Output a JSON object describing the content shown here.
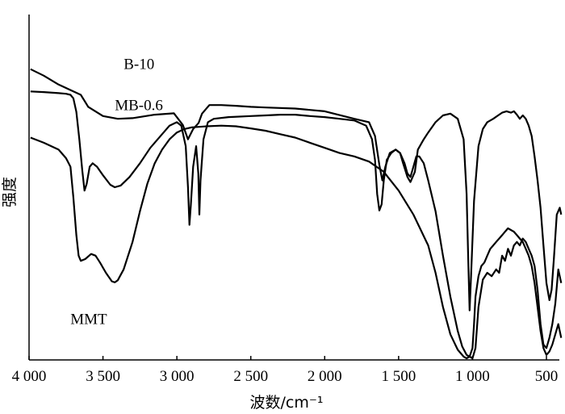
{
  "chart_data": {
    "type": "line",
    "xlabel": "波数/cm⁻¹",
    "ylabel": "强度",
    "xlim": [
      4000,
      400
    ],
    "x_reversed": true,
    "y_ticks_shown": false,
    "x_ticks": [
      {
        "value": 4000,
        "label": "4 000"
      },
      {
        "value": 3500,
        "label": "3 500"
      },
      {
        "value": 3000,
        "label": "3 000"
      },
      {
        "value": 2500,
        "label": "2 500"
      },
      {
        "value": 2000,
        "label": "2 000"
      },
      {
        "value": 1500,
        "label": "1 500"
      },
      {
        "value": 1000,
        "label": "1 000"
      },
      {
        "value": 500,
        "label": "500"
      }
    ],
    "grid": false,
    "color": "#000000",
    "series": [
      {
        "name": "B-10",
        "label_at": [
          3360,
          0.845
        ],
        "points": [
          [
            3990,
            0.845
          ],
          [
            3900,
            0.826
          ],
          [
            3800,
            0.8
          ],
          [
            3700,
            0.78
          ],
          [
            3650,
            0.77
          ],
          [
            3600,
            0.735
          ],
          [
            3500,
            0.708
          ],
          [
            3400,
            0.7
          ],
          [
            3300,
            0.702
          ],
          [
            3150,
            0.712
          ],
          [
            3020,
            0.716
          ],
          [
            2960,
            0.682
          ],
          [
            2925,
            0.64
          ],
          [
            2890,
            0.67
          ],
          [
            2853,
            0.688
          ],
          [
            2830,
            0.715
          ],
          [
            2780,
            0.74
          ],
          [
            2700,
            0.74
          ],
          [
            2600,
            0.738
          ],
          [
            2500,
            0.735
          ],
          [
            2400,
            0.733
          ],
          [
            2200,
            0.73
          ],
          [
            2000,
            0.722
          ],
          [
            1800,
            0.7
          ],
          [
            1700,
            0.69
          ],
          [
            1660,
            0.65
          ],
          [
            1630,
            0.565
          ],
          [
            1610,
            0.52
          ],
          [
            1590,
            0.56
          ],
          [
            1560,
            0.6
          ],
          [
            1520,
            0.61
          ],
          [
            1490,
            0.6
          ],
          [
            1470,
            0.57
          ],
          [
            1440,
            0.53
          ],
          [
            1420,
            0.515
          ],
          [
            1390,
            0.545
          ],
          [
            1370,
            0.61
          ],
          [
            1330,
            0.64
          ],
          [
            1300,
            0.66
          ],
          [
            1250,
            0.69
          ],
          [
            1200,
            0.71
          ],
          [
            1150,
            0.715
          ],
          [
            1100,
            0.7
          ],
          [
            1060,
            0.64
          ],
          [
            1040,
            0.48
          ],
          [
            1030,
            0.31
          ],
          [
            1020,
            0.14
          ],
          [
            1010,
            0.24
          ],
          [
            990,
            0.46
          ],
          [
            960,
            0.62
          ],
          [
            930,
            0.67
          ],
          [
            900,
            0.69
          ],
          [
            860,
            0.7
          ],
          [
            820,
            0.712
          ],
          [
            800,
            0.718
          ],
          [
            770,
            0.722
          ],
          [
            740,
            0.718
          ],
          [
            720,
            0.722
          ],
          [
            700,
            0.712
          ],
          [
            680,
            0.7
          ],
          [
            660,
            0.71
          ],
          [
            640,
            0.7
          ],
          [
            620,
            0.68
          ],
          [
            600,
            0.65
          ],
          [
            580,
            0.59
          ],
          [
            560,
            0.52
          ],
          [
            540,
            0.44
          ],
          [
            520,
            0.33
          ],
          [
            500,
            0.22
          ],
          [
            480,
            0.17
          ],
          [
            465,
            0.2
          ],
          [
            450,
            0.29
          ],
          [
            430,
            0.42
          ],
          [
            410,
            0.44
          ],
          [
            400,
            0.42
          ]
        ]
      },
      {
        "name": "MB-0.6",
        "label_at": [
          3420,
          0.725
        ],
        "points": [
          [
            3990,
            0.78
          ],
          [
            3900,
            0.778
          ],
          [
            3800,
            0.775
          ],
          [
            3750,
            0.773
          ],
          [
            3720,
            0.77
          ],
          [
            3700,
            0.76
          ],
          [
            3680,
            0.72
          ],
          [
            3660,
            0.64
          ],
          [
            3640,
            0.55
          ],
          [
            3625,
            0.49
          ],
          [
            3610,
            0.51
          ],
          [
            3590,
            0.56
          ],
          [
            3570,
            0.57
          ],
          [
            3540,
            0.56
          ],
          [
            3500,
            0.535
          ],
          [
            3450,
            0.507
          ],
          [
            3420,
            0.5
          ],
          [
            3380,
            0.505
          ],
          [
            3320,
            0.53
          ],
          [
            3250,
            0.57
          ],
          [
            3180,
            0.615
          ],
          [
            3100,
            0.655
          ],
          [
            3050,
            0.68
          ],
          [
            3000,
            0.69
          ],
          [
            2970,
            0.68
          ],
          [
            2940,
            0.62
          ],
          [
            2925,
            0.5
          ],
          [
            2915,
            0.39
          ],
          [
            2905,
            0.45
          ],
          [
            2890,
            0.56
          ],
          [
            2870,
            0.62
          ],
          [
            2855,
            0.54
          ],
          [
            2848,
            0.42
          ],
          [
            2840,
            0.52
          ],
          [
            2820,
            0.64
          ],
          [
            2790,
            0.69
          ],
          [
            2750,
            0.7
          ],
          [
            2650,
            0.705
          ],
          [
            2500,
            0.708
          ],
          [
            2400,
            0.71
          ],
          [
            2300,
            0.712
          ],
          [
            2200,
            0.712
          ],
          [
            2100,
            0.708
          ],
          [
            2000,
            0.705
          ],
          [
            1900,
            0.7
          ],
          [
            1800,
            0.695
          ],
          [
            1720,
            0.68
          ],
          [
            1680,
            0.64
          ],
          [
            1660,
            0.58
          ],
          [
            1645,
            0.48
          ],
          [
            1630,
            0.432
          ],
          [
            1615,
            0.45
          ],
          [
            1600,
            0.52
          ],
          [
            1580,
            0.58
          ],
          [
            1550,
            0.6
          ],
          [
            1520,
            0.61
          ],
          [
            1490,
            0.6
          ],
          [
            1460,
            0.57
          ],
          [
            1440,
            0.54
          ],
          [
            1420,
            0.53
          ],
          [
            1400,
            0.56
          ],
          [
            1380,
            0.59
          ],
          [
            1360,
            0.59
          ],
          [
            1330,
            0.57
          ],
          [
            1300,
            0.52
          ],
          [
            1250,
            0.43
          ],
          [
            1200,
            0.3
          ],
          [
            1150,
            0.18
          ],
          [
            1100,
            0.08
          ],
          [
            1070,
            0.035
          ],
          [
            1040,
            0.01
          ],
          [
            1000,
            0.0
          ],
          [
            980,
            0.03
          ],
          [
            960,
            0.15
          ],
          [
            930,
            0.23
          ],
          [
            900,
            0.25
          ],
          [
            870,
            0.24
          ],
          [
            840,
            0.26
          ],
          [
            820,
            0.25
          ],
          [
            800,
            0.3
          ],
          [
            780,
            0.285
          ],
          [
            760,
            0.32
          ],
          [
            740,
            0.3
          ],
          [
            720,
            0.33
          ],
          [
            700,
            0.34
          ],
          [
            680,
            0.33
          ],
          [
            660,
            0.35
          ],
          [
            640,
            0.34
          ],
          [
            620,
            0.32
          ],
          [
            600,
            0.3
          ],
          [
            580,
            0.27
          ],
          [
            560,
            0.2
          ],
          [
            540,
            0.1
          ],
          [
            520,
            0.04
          ],
          [
            500,
            0.03
          ],
          [
            480,
            0.06
          ],
          [
            460,
            0.1
          ],
          [
            440,
            0.16
          ],
          [
            420,
            0.26
          ],
          [
            400,
            0.22
          ]
        ]
      },
      {
        "name": "MMT",
        "label_at": [
          3720,
          0.1
        ],
        "points": [
          [
            3990,
            0.645
          ],
          [
            3900,
            0.63
          ],
          [
            3800,
            0.61
          ],
          [
            3750,
            0.585
          ],
          [
            3720,
            0.56
          ],
          [
            3700,
            0.47
          ],
          [
            3680,
            0.36
          ],
          [
            3665,
            0.3
          ],
          [
            3650,
            0.285
          ],
          [
            3620,
            0.29
          ],
          [
            3580,
            0.305
          ],
          [
            3550,
            0.3
          ],
          [
            3520,
            0.28
          ],
          [
            3480,
            0.25
          ],
          [
            3440,
            0.225
          ],
          [
            3420,
            0.222
          ],
          [
            3400,
            0.228
          ],
          [
            3360,
            0.26
          ],
          [
            3300,
            0.34
          ],
          [
            3250,
            0.43
          ],
          [
            3200,
            0.51
          ],
          [
            3150,
            0.57
          ],
          [
            3100,
            0.61
          ],
          [
            3050,
            0.64
          ],
          [
            3000,
            0.66
          ],
          [
            2950,
            0.67
          ],
          [
            2900,
            0.675
          ],
          [
            2800,
            0.678
          ],
          [
            2700,
            0.68
          ],
          [
            2600,
            0.678
          ],
          [
            2500,
            0.672
          ],
          [
            2400,
            0.665
          ],
          [
            2300,
            0.655
          ],
          [
            2200,
            0.645
          ],
          [
            2100,
            0.63
          ],
          [
            2000,
            0.615
          ],
          [
            1900,
            0.6
          ],
          [
            1800,
            0.59
          ],
          [
            1700,
            0.575
          ],
          [
            1600,
            0.545
          ],
          [
            1500,
            0.49
          ],
          [
            1400,
            0.42
          ],
          [
            1300,
            0.33
          ],
          [
            1250,
            0.25
          ],
          [
            1200,
            0.15
          ],
          [
            1150,
            0.07
          ],
          [
            1100,
            0.025
          ],
          [
            1060,
            0.005
          ],
          [
            1040,
            0.0
          ],
          [
            1020,
            0.005
          ],
          [
            1000,
            0.03
          ],
          [
            990,
            0.1
          ],
          [
            980,
            0.18
          ],
          [
            960,
            0.24
          ],
          [
            940,
            0.27
          ],
          [
            920,
            0.28
          ],
          [
            900,
            0.3
          ],
          [
            880,
            0.32
          ],
          [
            860,
            0.33
          ],
          [
            840,
            0.34
          ],
          [
            820,
            0.35
          ],
          [
            800,
            0.36
          ],
          [
            780,
            0.37
          ],
          [
            760,
            0.38
          ],
          [
            740,
            0.375
          ],
          [
            720,
            0.37
          ],
          [
            700,
            0.36
          ],
          [
            680,
            0.35
          ],
          [
            660,
            0.34
          ],
          [
            640,
            0.32
          ],
          [
            620,
            0.3
          ],
          [
            600,
            0.27
          ],
          [
            580,
            0.22
          ],
          [
            560,
            0.15
          ],
          [
            540,
            0.08
          ],
          [
            520,
            0.03
          ],
          [
            500,
            0.01
          ],
          [
            480,
            0.02
          ],
          [
            460,
            0.04
          ],
          [
            440,
            0.07
          ],
          [
            420,
            0.1
          ],
          [
            400,
            0.06
          ]
        ]
      }
    ]
  }
}
